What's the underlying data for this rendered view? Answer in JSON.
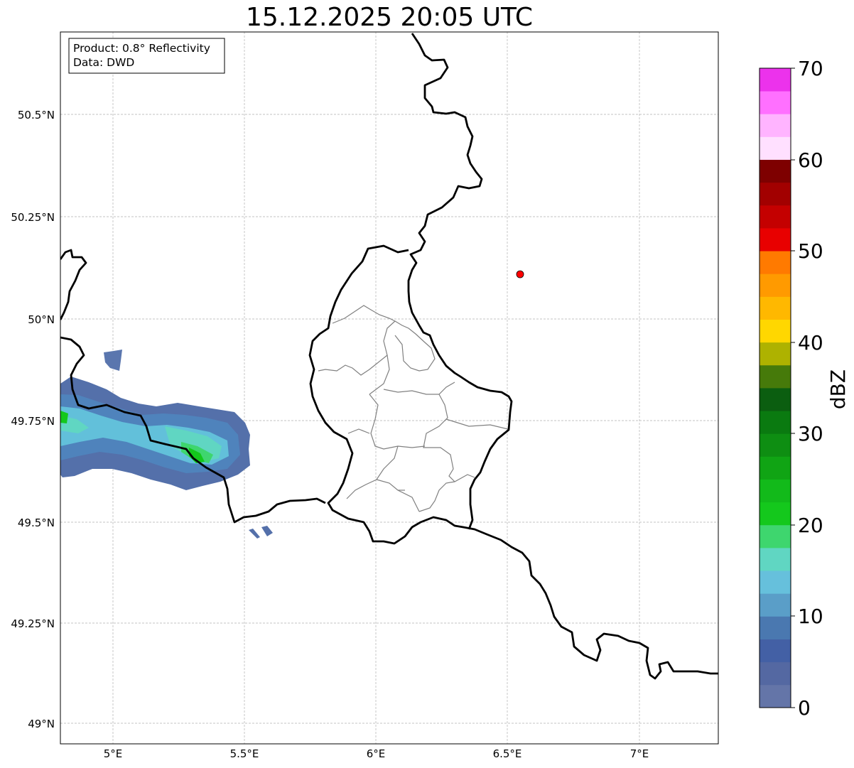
{
  "title": "15.12.2025 20:05 UTC",
  "info_box": {
    "product": "Product: 0.8° Reflectivity",
    "data": "Data: DWD"
  },
  "axes": {
    "lon_ticks": [
      "5°E",
      "5.5°E",
      "6°E",
      "6.5°E",
      "7°E"
    ],
    "lat_ticks": [
      "50.5°N",
      "50.25°N",
      "50°N",
      "49.75°N",
      "49.5°N",
      "49.25°N",
      "49°N"
    ],
    "lon_range": [
      4.8,
      7.3
    ],
    "lat_range": [
      48.95,
      50.7
    ],
    "grid": true
  },
  "marker": {
    "lon": 6.55,
    "lat": 50.11,
    "color": "#ff0000"
  },
  "colorbar": {
    "label": "dBZ",
    "range": [
      0,
      70
    ],
    "ticks": [
      "0",
      "10",
      "20",
      "30",
      "40",
      "50",
      "60",
      "70"
    ],
    "colors": [
      "#6475a8",
      "#5468a2",
      "#4360a5",
      "#4a78b0",
      "#5a9ec8",
      "#66c0dc",
      "#60d6c2",
      "#3ed66e",
      "#14c81c",
      "#12ba1a",
      "#10a414",
      "#0e8e12",
      "#0a7a10",
      "#0b5e10",
      "#467a0a",
      "#aeb200",
      "#ffd700",
      "#ffb800",
      "#ff9a00",
      "#ff7a00",
      "#e80000",
      "#c40000",
      "#a20000",
      "#7e0000",
      "#ffe0ff",
      "#ffb4ff",
      "#ff70ff",
      "#ec32ec"
    ]
  }
}
